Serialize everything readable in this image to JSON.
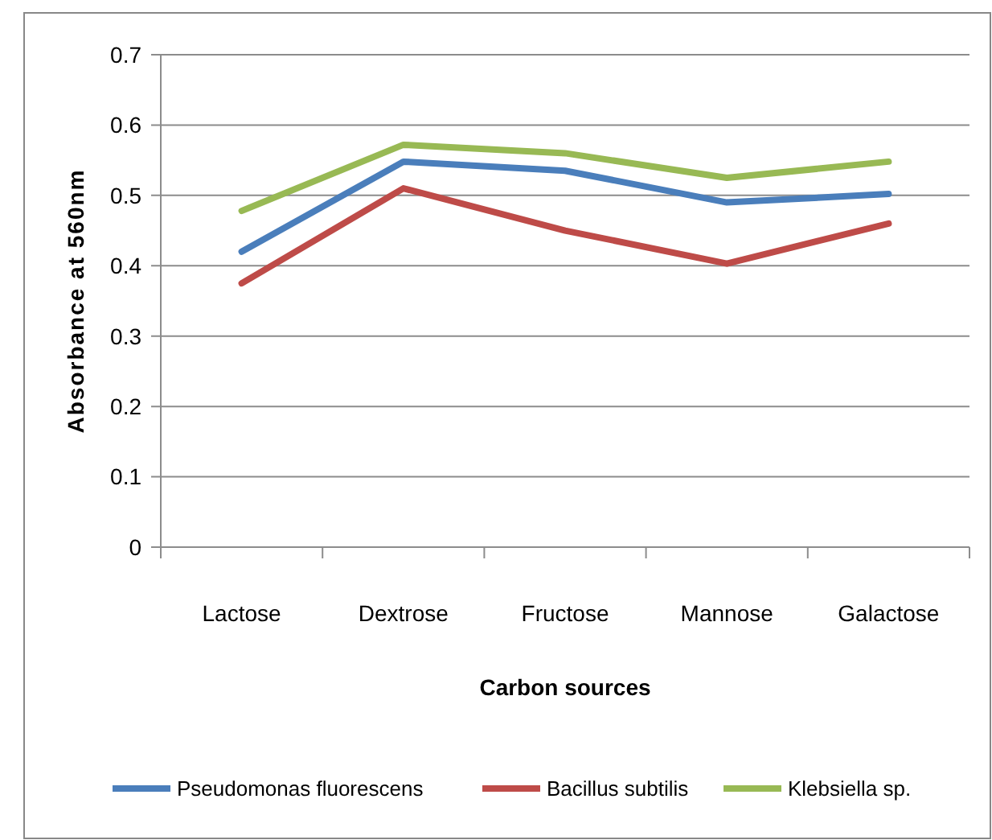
{
  "chart_data": {
    "type": "line",
    "xlabel": "Carbon sources",
    "ylabel": "Absorbance  at 560nm",
    "categories": [
      "Lactose",
      "Dextrose",
      "Fructose",
      "Mannose",
      "Galactose"
    ],
    "series": [
      {
        "name": "Pseudomonas fluorescens",
        "color": "#4a7ebb",
        "values": [
          0.42,
          0.548,
          0.535,
          0.49,
          0.502
        ]
      },
      {
        "name": "Bacillus subtilis",
        "color": "#be4b48",
        "values": [
          0.375,
          0.51,
          0.45,
          0.403,
          0.46
        ]
      },
      {
        "name": "Klebsiella sp.",
        "color": "#98b954",
        "values": [
          0.478,
          0.572,
          0.56,
          0.525,
          0.548
        ]
      }
    ],
    "ylim": [
      0,
      0.7
    ],
    "yticks": [
      0,
      0.1,
      0.2,
      0.3,
      0.4,
      0.5,
      0.6,
      0.7
    ],
    "grid": "y",
    "legend": "bottom",
    "marker": "none",
    "line_style": "solid"
  }
}
